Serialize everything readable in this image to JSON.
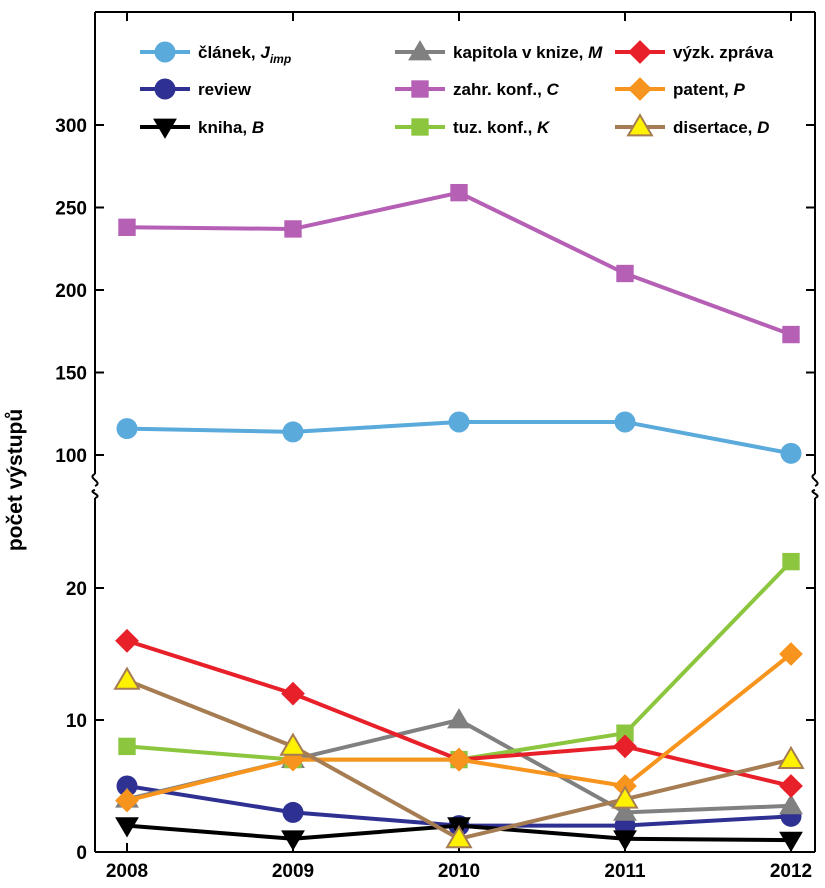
{
  "chart_data": {
    "type": "line",
    "x": [
      2008,
      2009,
      2010,
      2011,
      2012
    ],
    "x_tick_labels": [
      "2008",
      "2009",
      "2010",
      "2011",
      "2012"
    ],
    "ylabel": "počet výstupů",
    "y_axis_broken": true,
    "y_lower_range": [
      0,
      25
    ],
    "y_upper_range": [
      85,
      330
    ],
    "y_ticks": [
      0,
      10,
      20,
      100,
      150,
      200,
      250,
      300
    ],
    "y_tick_labels": [
      "0",
      "10",
      "20",
      "100",
      "150",
      "200",
      "250",
      "300"
    ],
    "grid": false,
    "legend_position": "top",
    "series": [
      {
        "name": "článek, ",
        "name_italic": "J",
        "name_sub": "imp",
        "color": "#5aaadc",
        "marker": "circle",
        "values": [
          116,
          114,
          120,
          120,
          101
        ]
      },
      {
        "name": "review",
        "color": "#2e3192",
        "marker": "circle",
        "values": [
          5,
          3,
          2,
          2,
          2.7
        ]
      },
      {
        "name": "kniha, ",
        "name_italic": "B",
        "color": "#000000",
        "marker": "triangle-down",
        "values": [
          2,
          1,
          2,
          1,
          0.9
        ]
      },
      {
        "name": "kapitola v knize, ",
        "name_italic": "M",
        "color": "#808080",
        "marker": "triangle-up",
        "values": [
          4,
          7,
          10,
          3,
          3.5
        ]
      },
      {
        "name": "zahr. konf., ",
        "name_italic": "C",
        "color": "#b55fb5",
        "marker": "square",
        "values": [
          238,
          237,
          259,
          210,
          173
        ]
      },
      {
        "name": "tuz. konf., ",
        "name_italic": "K",
        "color": "#8cc63e",
        "marker": "square",
        "values": [
          8,
          7,
          7,
          9,
          22
        ]
      },
      {
        "name": "výzk. zpráva",
        "color": "#e8202a",
        "marker": "diamond",
        "values": [
          16,
          12,
          7,
          8,
          5
        ]
      },
      {
        "name": "patent, ",
        "name_italic": "P",
        "color": "#f7941d",
        "marker": "diamond",
        "values": [
          3.9,
          7,
          7,
          5,
          15
        ]
      },
      {
        "name": "disertace, ",
        "name_italic": "D",
        "color": "#a67c52",
        "marker": "triangle-up-yellow",
        "marker_fill": "#fff200",
        "values": [
          13,
          8,
          1,
          4,
          7
        ]
      }
    ]
  }
}
